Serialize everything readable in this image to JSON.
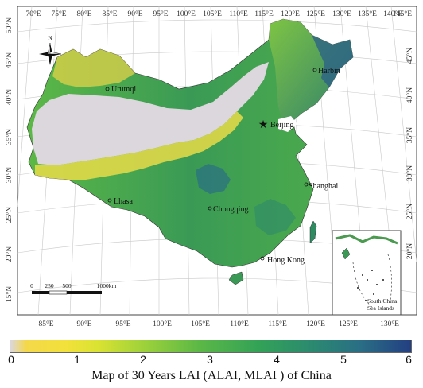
{
  "map": {
    "top_longitudes": [
      "70°E",
      "75°E",
      "80°E",
      "85°E",
      "90°E",
      "95°E",
      "100°E",
      "105°E",
      "110°E",
      "115°E",
      "120°E",
      "125°E",
      "130°E",
      "135°E",
      "140°E",
      "145°E"
    ],
    "bottom_longitudes": [
      "85°E",
      "90°E",
      "95°E",
      "100°E",
      "105°E",
      "110°E",
      "115°E",
      "120°E"
    ],
    "left_latitudes": [
      "50°N",
      "45°N",
      "40°N",
      "35°N",
      "30°N",
      "25°N",
      "20°N",
      "15°N"
    ],
    "right_latitudes": [
      "45°N",
      "40°N",
      "35°N",
      "30°N",
      "25°N",
      "20°N"
    ],
    "cities": {
      "urumqi": "Urumqi",
      "harbin": "Harbin",
      "beijing": "Beijing",
      "shanghai": "Shanghai",
      "lhasa": "Lhasa",
      "chongqing": "Chongqing",
      "hong_kong": "Hong Kong"
    },
    "north_arrow": "N",
    "scale_bar": {
      "labels": [
        "0",
        "250",
        "500",
        "1000km"
      ]
    },
    "inset": {
      "label_line1": "South China",
      "label_line2": "Sea Islands",
      "longitudes": [
        "125°E",
        "130°E"
      ]
    }
  },
  "colorbar": {
    "ticks": [
      "0",
      "1",
      "2",
      "3",
      "4",
      "5",
      "6"
    ],
    "min": 0,
    "max": 6
  },
  "title": "Map of 30 Years LAI (ALAI, MLAI ) of China",
  "colors": {
    "bare": "#dcd7dc",
    "low": "#f2e13a",
    "mid": "#5cb846",
    "high": "#233f82"
  }
}
